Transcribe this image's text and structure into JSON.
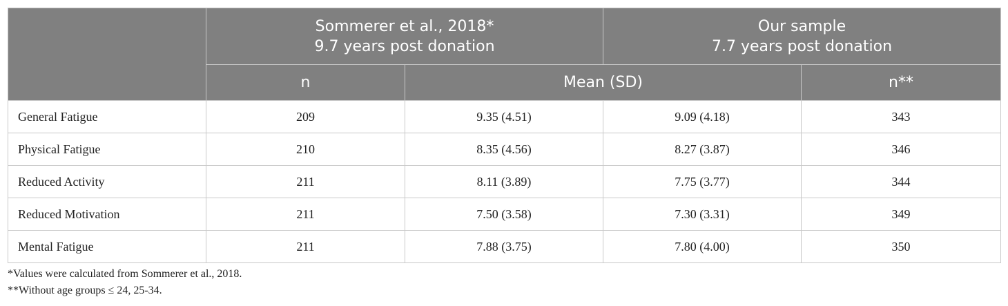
{
  "table": {
    "groups": [
      {
        "lines": [
          "Sommerer et al., 2018*",
          "9.7 years post donation"
        ]
      },
      {
        "lines": [
          "Our sample",
          "7.7 years post donation"
        ]
      }
    ],
    "subheaders": [
      "n",
      "Mean (SD)",
      "n**"
    ],
    "rows": [
      [
        "General Fatigue",
        209,
        "9.35 (4.51)",
        "9.09 (4.18)",
        343
      ],
      [
        "Physical Fatigue",
        210,
        "8.35 (4.56)",
        "8.27 (3.87)",
        346
      ],
      [
        "Reduced Activity",
        211,
        "8.11 (3.89)",
        "7.75 (3.77)",
        344
      ],
      [
        "Reduced Motivation",
        211,
        "7.50 (3.58)",
        "7.30 (3.31)",
        349
      ],
      [
        "Mental Fatigue",
        211,
        "7.88 (3.75)",
        "7.80 (4.00)",
        350
      ]
    ]
  },
  "notes": [
    "*Values were calculated from Sommerer et al., 2018.",
    "**Without age groups ≤ 24, 25-34."
  ]
}
